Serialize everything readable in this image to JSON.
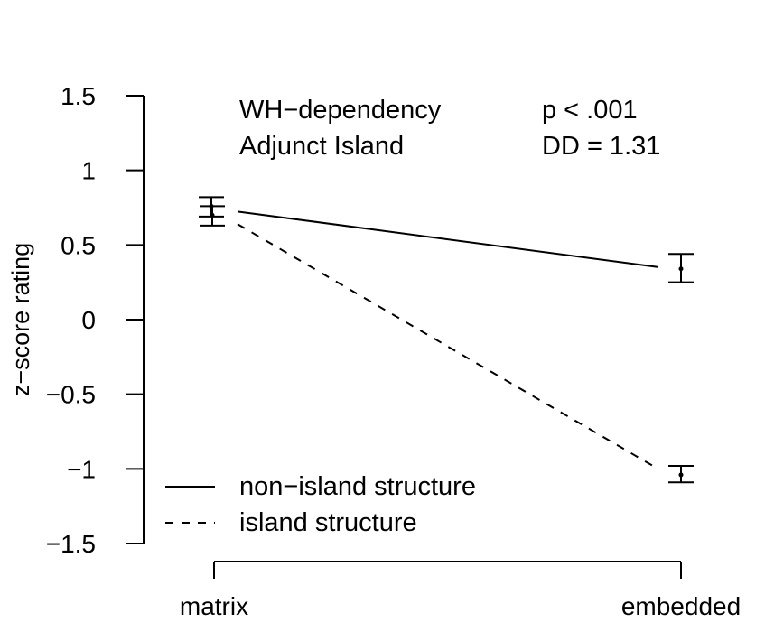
{
  "chart_data": {
    "type": "line",
    "categories": [
      "matrix",
      "embedded"
    ],
    "ylabel": "z−score rating",
    "ylim": [
      -1.5,
      1.5
    ],
    "yticks": [
      1.5,
      1,
      0.5,
      0,
      -0.5,
      -1,
      -1.5
    ],
    "ytick_labels": [
      "1.5",
      "1",
      "0.5",
      "0",
      "−0.5",
      "−1",
      "−1.5"
    ],
    "grid": false,
    "annotations": {
      "line1_left": "WH−dependency",
      "line1_right": "p < .001",
      "line2_left": "Adjunct Island",
      "line2_right": "DD = 1.31"
    },
    "legend": {
      "position": "bottom-left",
      "entries": [
        {
          "label": "non−island structure",
          "style": "solid"
        },
        {
          "label": "island structure",
          "style": "dashed"
        }
      ]
    },
    "series": [
      {
        "name": "non−island structure",
        "style": "solid",
        "values": [
          0.76,
          0.34
        ],
        "error_low": [
          0.69,
          0.25
        ],
        "error_high": [
          0.82,
          0.44
        ]
      },
      {
        "name": "island structure",
        "style": "dashed",
        "values": [
          0.7,
          -1.04
        ],
        "error_low": [
          0.63,
          -1.09
        ],
        "error_high": [
          0.76,
          -0.98
        ]
      }
    ]
  }
}
